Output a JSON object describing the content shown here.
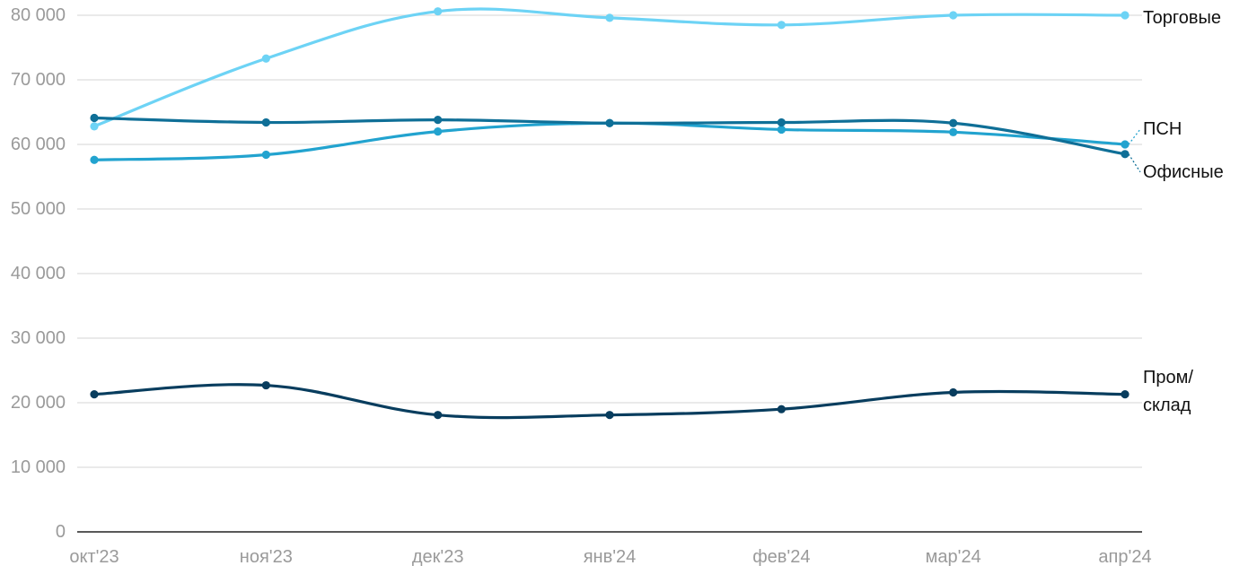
{
  "chart_data": {
    "type": "line",
    "categories": [
      "окт'23",
      "ноя'23",
      "дек'23",
      "янв'24",
      "фев'24",
      "мар'24",
      "апр'24"
    ],
    "ylim": [
      0,
      80000
    ],
    "yticks": [
      0,
      10000,
      20000,
      30000,
      40000,
      50000,
      60000,
      70000,
      80000
    ],
    "ytick_labels": [
      "0",
      "10 000",
      "20 000",
      "30 000",
      "40 000",
      "50 000",
      "60 000",
      "70 000",
      "80 000"
    ],
    "grid": true,
    "series": [
      {
        "name": "Торговые",
        "values": [
          62800,
          73300,
          80600,
          79600,
          78500,
          80000,
          80000
        ],
        "color": "#6dd3f5"
      },
      {
        "name": "ПСН",
        "values": [
          57600,
          58400,
          62000,
          63300,
          62300,
          61900,
          60000
        ],
        "color": "#22a3cf"
      },
      {
        "name": "Офисные",
        "values": [
          64100,
          63400,
          63800,
          63300,
          63400,
          63300,
          58500
        ],
        "color": "#0f6f97"
      },
      {
        "name_lines": [
          "Пром/",
          "склад"
        ],
        "values": [
          21300,
          22700,
          18100,
          18100,
          19000,
          21600,
          21300
        ],
        "color": "#083d5e"
      }
    ]
  }
}
